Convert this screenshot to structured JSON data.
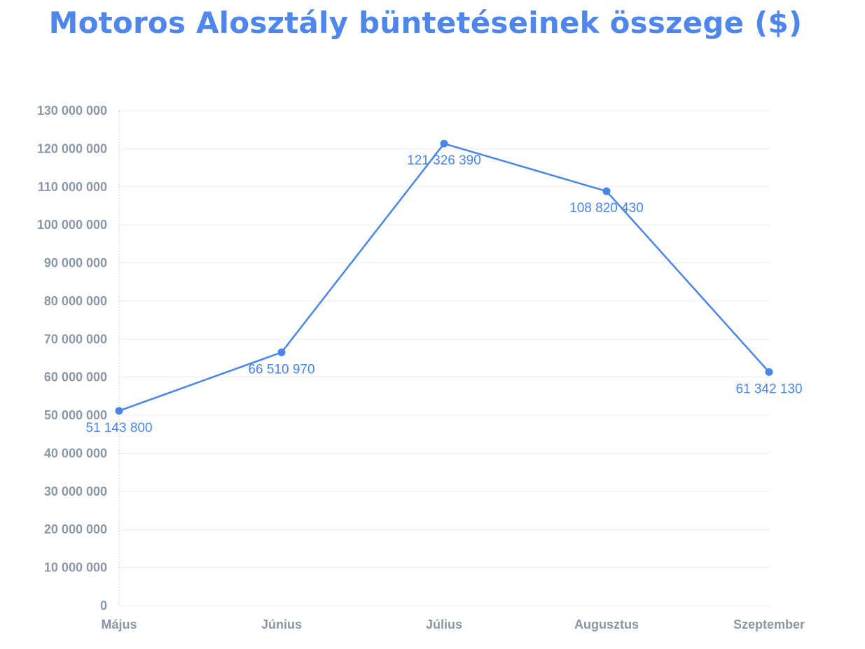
{
  "chart_data": {
    "type": "line",
    "title": "Motoros Alosztály büntetéseinek összege ($)",
    "xlabel": "",
    "ylabel": "",
    "categories": [
      "Május",
      "Június",
      "Július",
      "Augusztus",
      "Szeptember"
    ],
    "series": [
      {
        "values": [
          51143800,
          66510970,
          121326390,
          108820430,
          61342130
        ],
        "labels": [
          "51 143 800",
          "66 510 970",
          "121 326 390",
          "108 820 430",
          "61 342 130"
        ],
        "color": "#4a85e8"
      }
    ],
    "ylim": [
      0,
      130000000
    ],
    "yticks": [
      0,
      10000000,
      20000000,
      30000000,
      40000000,
      50000000,
      60000000,
      70000000,
      80000000,
      90000000,
      100000000,
      110000000,
      120000000,
      130000000
    ],
    "ytick_labels": [
      "0",
      "10 000 000",
      "20 000 000",
      "30 000 000",
      "40 000 000",
      "50 000 000",
      "60 000 000",
      "70 000 000",
      "80 000 000",
      "90 000 000",
      "100 000 000",
      "110 000 000",
      "120 000 000",
      "130 000 000"
    ],
    "grid": true,
    "legend": "none",
    "colors": {
      "title": "#4f86ec",
      "line": "#4a85e8",
      "grid": "#ececec",
      "tick_text": "#8a97a6"
    }
  }
}
